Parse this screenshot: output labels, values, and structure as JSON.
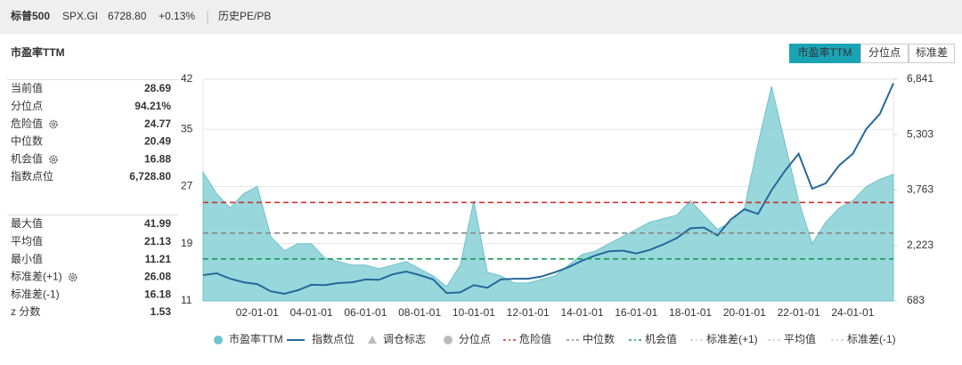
{
  "header": {
    "title": "标普500",
    "code": "SPX.GI",
    "price": "6728.80",
    "change": "+0.13%",
    "link": "历史PE/PB"
  },
  "panel_title": "市盈率TTM",
  "tabs": [
    "市盈率TTM",
    "分位点",
    "标准差"
  ],
  "stats": [
    {
      "label": "当前值",
      "value": 28.69
    },
    {
      "label": "分位点",
      "value": {
        "value": 94.21,
        "label": "94.21%"
      }
    },
    {
      "label": "危险值",
      "value": 24.77
    },
    {
      "label": "中位数",
      "value": 20.49
    },
    {
      "label": "机会值",
      "value": 16.88
    },
    {
      "label": "指数点位",
      "value": {
        "value": 6728.8,
        "label": "6,728.80"
      }
    },
    {
      "label": "最大值",
      "value": 41.99
    },
    {
      "label": "平均值",
      "value": 21.13
    },
    {
      "label": "最小值",
      "value": 11.21
    },
    {
      "label": "标准差(+1)",
      "value": 26.08
    },
    {
      "label": "标准差(-1)",
      "value": 16.18
    },
    {
      "label": "z 分数",
      "value": 1.53
    }
  ],
  "chart_data": {
    "type": "area-line",
    "categories": [
      null,
      null,
      null,
      null,
      "02-01-01",
      null,
      null,
      null,
      "04-01-01",
      null,
      null,
      null,
      "06-01-01",
      null,
      null,
      null,
      "08-01-01",
      null,
      null,
      null,
      "10-01-01",
      null,
      null,
      null,
      "12-01-01",
      null,
      null,
      null,
      "14-01-01",
      null,
      null,
      null,
      "16-01-01",
      null,
      null,
      null,
      "18-01-01",
      null,
      null,
      null,
      "20-01-01",
      null,
      null,
      null,
      "22-01-01",
      null,
      null,
      null,
      "24-01-01",
      null,
      null,
      null
    ],
    "series": [
      {
        "name": "市盈率TTM",
        "color": "#8dd3d8",
        "values": [
          29,
          26,
          24,
          26,
          27,
          20,
          18,
          19,
          19,
          17,
          16.5,
          16,
          16,
          15.5,
          16,
          16.5,
          15.5,
          14.5,
          13,
          16,
          25,
          15,
          14.5,
          13.5,
          13.5,
          14,
          14.5,
          16,
          17.5,
          18,
          19,
          20,
          21,
          22,
          22.5,
          23,
          25,
          23,
          21,
          22,
          24,
          33,
          41,
          33,
          25,
          19,
          22,
          24,
          25,
          27,
          28,
          28.69
        ]
      },
      {
        "name": "指数点位",
        "color": "#24699a",
        "axis": "y2",
        "values": [
          1400,
          1450,
          1300,
          1200,
          1150,
          950,
          880,
          980,
          1130,
          1120,
          1180,
          1200,
          1280,
          1270,
          1420,
          1500,
          1400,
          1280,
          900,
          920,
          1120,
          1050,
          1280,
          1300,
          1300,
          1360,
          1480,
          1620,
          1800,
          1950,
          2060,
          2080,
          2000,
          2100,
          2250,
          2430,
          2700,
          2720,
          2500,
          2950,
          3230,
          3100,
          3760,
          4300,
          4770,
          3800,
          3950,
          4450,
          4770,
          5460,
          5880,
          6728.8
        ]
      }
    ],
    "ylim": [
      11,
      42
    ],
    "yticks": [
      11,
      19,
      27,
      35,
      42
    ],
    "y2lim": [
      683,
      6841
    ],
    "y2ticks": [
      {
        "value": 683,
        "label": "683"
      },
      {
        "value": 2223,
        "label": "2,223"
      },
      {
        "value": 3763,
        "label": "3,763"
      },
      {
        "value": 5303,
        "label": "5,303"
      },
      {
        "value": 6841,
        "label": "6,841"
      }
    ],
    "grid": true,
    "legend_inactive_markers": [
      "调仓标志",
      "分位点"
    ],
    "reference_lines": [
      {
        "name": "危险值",
        "color": "#d0312d",
        "value": 24.77
      },
      {
        "name": "中位数",
        "color": "#888888",
        "value": 20.49
      },
      {
        "name": "机会值",
        "color": "#1e9a5a",
        "value": 16.88
      }
    ],
    "legend_inactive_lines": [
      "标准差(+1)",
      "平均值",
      "标准差(-1)"
    ]
  }
}
